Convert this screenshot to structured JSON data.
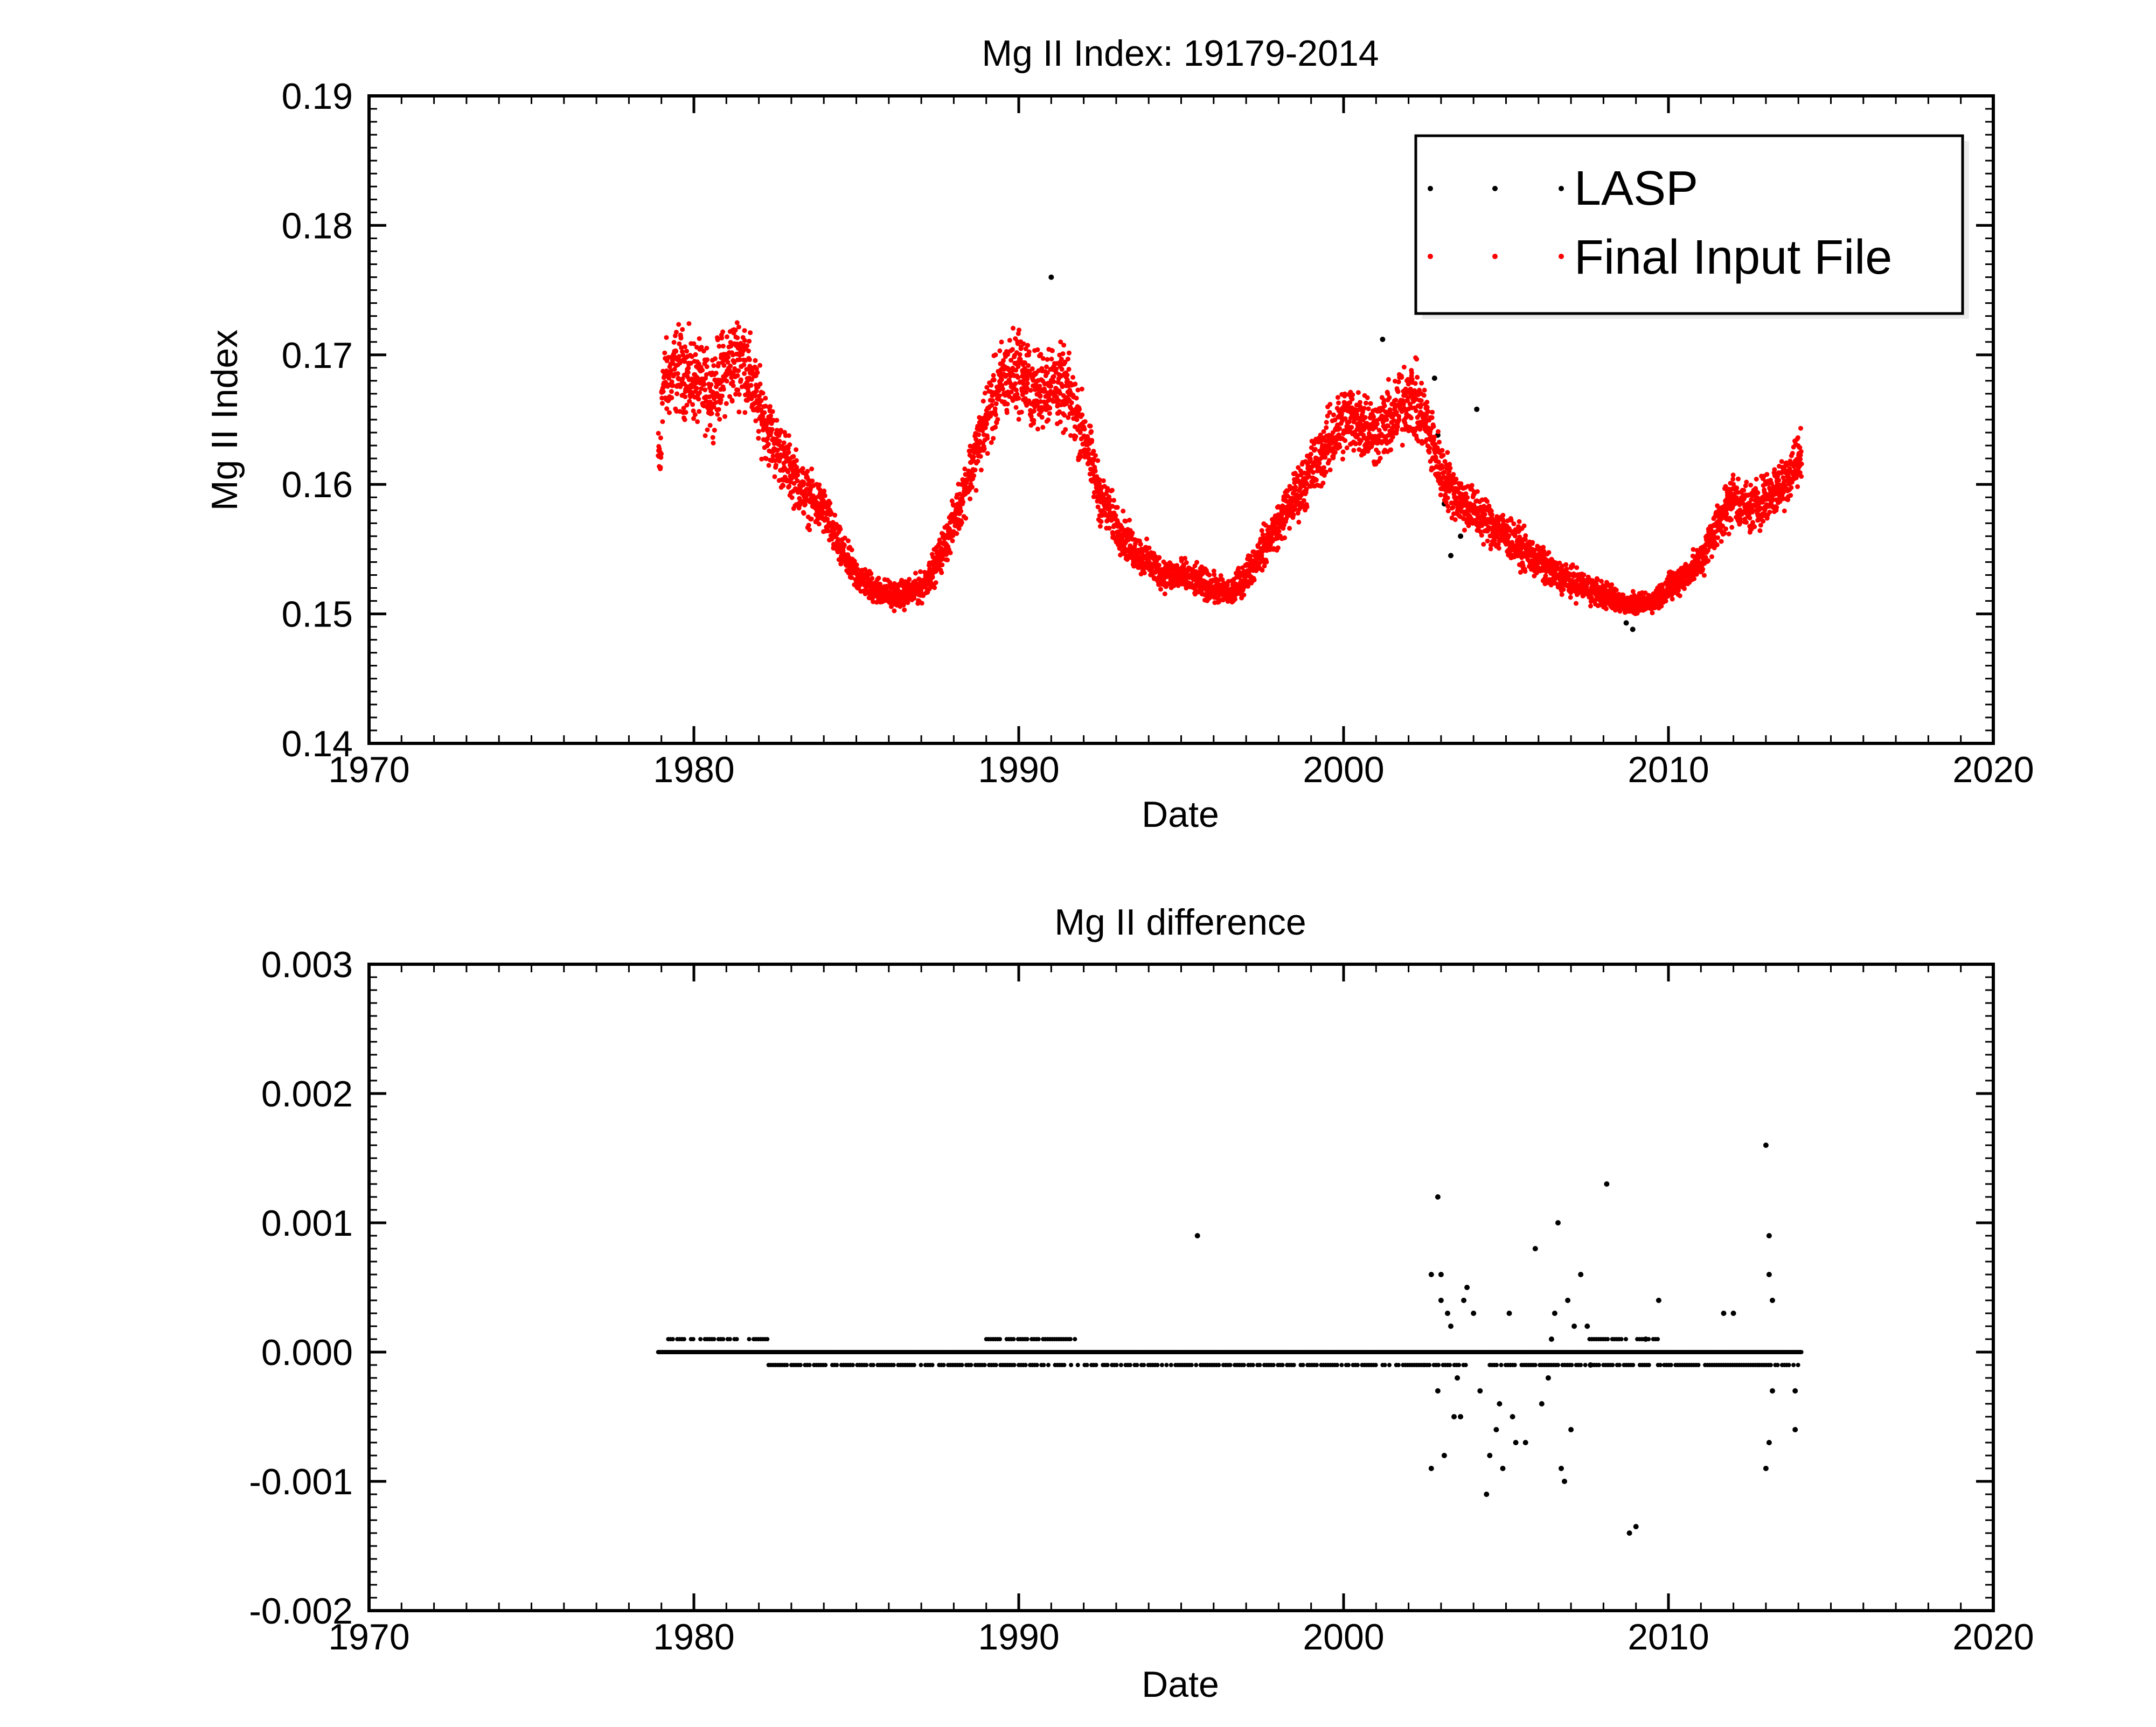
{
  "chart_data": [
    {
      "type": "scatter",
      "title": "Mg II Index: 19179-2014",
      "xlabel": "Date",
      "ylabel": "Mg II Index",
      "xlim": [
        1970,
        2020
      ],
      "ylim": [
        0.14,
        0.19
      ],
      "xticks": [
        1970,
        1980,
        1990,
        2000,
        2010,
        2020
      ],
      "xtick_labels": [
        "1970",
        "1980",
        "1990",
        "2000",
        "2010",
        "2020"
      ],
      "yticks": [
        0.14,
        0.15,
        0.16,
        0.17,
        0.18,
        0.19
      ],
      "ytick_labels": [
        "0.14",
        "0.15",
        "0.16",
        "0.17",
        "0.18",
        "0.19"
      ],
      "legend_position": "top-right",
      "series": [
        {
          "name": "LASP",
          "color": "#000000",
          "points": [
            [
              2002.8,
              0.1682
            ],
            [
              2002.9,
              0.1638
            ],
            [
              2003.1,
              0.1585
            ],
            [
              2003.3,
              0.1545
            ],
            [
              2004.1,
              0.1658
            ],
            [
              2008.7,
              0.1493
            ],
            [
              2008.9,
              0.1488
            ],
            [
              2001.2,
              0.1712
            ],
            [
              1991.0,
              0.176
            ],
            [
              2003.6,
              0.156
            ]
          ]
        },
        {
          "name": "Final Input File",
          "color": "#ff0000",
          "envelope": [
            [
              1979.0,
              0.1675
            ],
            [
              1979.5,
              0.169
            ],
            [
              1980.0,
              0.168
            ],
            [
              1980.5,
              0.167
            ],
            [
              1981.0,
              0.169
            ],
            [
              1981.5,
              0.17
            ],
            [
              1982.0,
              0.166
            ],
            [
              1982.5,
              0.163
            ],
            [
              1983.0,
              0.161
            ],
            [
              1983.5,
              0.159
            ],
            [
              1984.0,
              0.158
            ],
            [
              1984.5,
              0.155
            ],
            [
              1985.0,
              0.153
            ],
            [
              1985.5,
              0.152
            ],
            [
              1986.0,
              0.1515
            ],
            [
              1986.5,
              0.1515
            ],
            [
              1987.0,
              0.152
            ],
            [
              1987.5,
              0.154
            ],
            [
              1988.0,
              0.157
            ],
            [
              1988.5,
              0.161
            ],
            [
              1989.0,
              0.165
            ],
            [
              1989.5,
              0.168
            ],
            [
              1990.0,
              0.169
            ],
            [
              1990.5,
              0.167
            ],
            [
              1991.0,
              0.168
            ],
            [
              1991.5,
              0.167
            ],
            [
              1992.0,
              0.164
            ],
            [
              1992.5,
              0.159
            ],
            [
              1993.0,
              0.157
            ],
            [
              1993.5,
              0.155
            ],
            [
              1994.0,
              0.154
            ],
            [
              1994.5,
              0.153
            ],
            [
              1995.0,
              0.153
            ],
            [
              1995.5,
              0.1525
            ],
            [
              1996.0,
              0.152
            ],
            [
              1996.5,
              0.1515
            ],
            [
              1997.0,
              0.153
            ],
            [
              1997.5,
              0.155
            ],
            [
              1998.0,
              0.157
            ],
            [
              1998.5,
              0.159
            ],
            [
              1999.0,
              0.161
            ],
            [
              1999.5,
              0.163
            ],
            [
              2000.0,
              0.165
            ],
            [
              2000.5,
              0.165
            ],
            [
              2001.0,
              0.164
            ],
            [
              2001.5,
              0.165
            ],
            [
              2002.0,
              0.167
            ],
            [
              2002.5,
              0.165
            ],
            [
              2003.0,
              0.161
            ],
            [
              2003.5,
              0.159
            ],
            [
              2004.0,
              0.158
            ],
            [
              2004.5,
              0.157
            ],
            [
              2005.0,
              0.156
            ],
            [
              2005.5,
              0.155
            ],
            [
              2006.0,
              0.154
            ],
            [
              2006.5,
              0.153
            ],
            [
              2007.0,
              0.1525
            ],
            [
              2007.5,
              0.152
            ],
            [
              2008.0,
              0.1515
            ],
            [
              2008.5,
              0.151
            ],
            [
              2009.0,
              0.1505
            ],
            [
              2009.5,
              0.151
            ],
            [
              2010.0,
              0.152
            ],
            [
              2010.5,
              0.153
            ],
            [
              2011.0,
              0.154
            ],
            [
              2011.5,
              0.157
            ],
            [
              2012.0,
              0.159
            ],
            [
              2012.5,
              0.158
            ],
            [
              2013.0,
              0.159
            ],
            [
              2013.5,
              0.16
            ],
            [
              2014.0,
              0.162
            ]
          ],
          "spread": 0.0035,
          "x_range": [
            1978.9,
            2014.1
          ],
          "y_range": [
            0.15,
            0.1805
          ]
        }
      ]
    },
    {
      "type": "scatter",
      "title": "Mg II difference",
      "xlabel": "Date",
      "ylabel": "",
      "xlim": [
        1970,
        2020
      ],
      "ylim": [
        -0.002,
        0.003
      ],
      "xticks": [
        1970,
        1980,
        1990,
        2000,
        2010,
        2020
      ],
      "xtick_labels": [
        "1970",
        "1980",
        "1990",
        "2000",
        "2010",
        "2020"
      ],
      "yticks": [
        -0.002,
        -0.001,
        0.0,
        0.001,
        0.002,
        0.003
      ],
      "ytick_labels": [
        "-0.002",
        "-0.001",
        "0.000",
        "0.001",
        "0.002",
        "0.003"
      ],
      "series": [
        {
          "name": "",
          "color": "#000000",
          "baseline": {
            "x_range": [
              1978.9,
              2014.1
            ],
            "y": 0.0
          },
          "bands": [
            {
              "x_range": [
                1979.0,
                1980.0
              ],
              "y": 0.0001
            },
            {
              "x_range": [
                1980.2,
                1981.5
              ],
              "y": 0.0001
            },
            {
              "x_range": [
                1981.7,
                1982.3
              ],
              "y": 0.0001
            },
            {
              "x_range": [
                1982.3,
                2002.5
              ],
              "y": -0.0001
            },
            {
              "x_range": [
                1989.0,
                1991.8
              ],
              "y": 0.0001
            },
            {
              "x_range": [
                2002.5,
                2003.8
              ],
              "y": -0.0001
            },
            {
              "x_range": [
                2004.5,
                2009.8
              ],
              "y": -0.0001
            },
            {
              "x_range": [
                2007.5,
                2009.8
              ],
              "y": 0.0001
            },
            {
              "x_range": [
                2009.8,
                2012.8
              ],
              "y": -0.0001
            },
            {
              "x_range": [
                2012.8,
                2014.0
              ],
              "y": -0.0001
            }
          ],
          "points": [
            [
              1995.5,
              0.0009
            ],
            [
              2002.7,
              0.0006
            ],
            [
              2002.9,
              0.0012
            ],
            [
              2003.0,
              0.0006
            ],
            [
              2002.7,
              -0.0009
            ],
            [
              2003.1,
              -0.0008
            ],
            [
              2003.0,
              0.0004
            ],
            [
              2003.2,
              0.0003
            ],
            [
              2003.4,
              -0.0005
            ],
            [
              2003.6,
              -0.0005
            ],
            [
              2003.7,
              0.0004
            ],
            [
              2003.8,
              0.0005
            ],
            [
              2004.0,
              0.0003
            ],
            [
              2004.2,
              -0.0003
            ],
            [
              2004.4,
              -0.0011
            ],
            [
              2004.5,
              -0.0008
            ],
            [
              2004.7,
              -0.0006
            ],
            [
              2004.9,
              -0.0009
            ],
            [
              2005.1,
              0.0003
            ],
            [
              2005.3,
              -0.0007
            ],
            [
              2005.6,
              -0.0007
            ],
            [
              2005.9,
              0.0008
            ],
            [
              2006.1,
              -0.0004
            ],
            [
              2006.4,
              0.0001
            ],
            [
              2006.6,
              0.001
            ],
            [
              2006.7,
              -0.0009
            ],
            [
              2006.8,
              -0.001
            ],
            [
              2006.9,
              0.0004
            ],
            [
              2007.1,
              0.0002
            ],
            [
              2007.3,
              0.0006
            ],
            [
              2007.6,
              -0.0001
            ],
            [
              2008.1,
              0.0013
            ],
            [
              2008.8,
              -0.0014
            ],
            [
              2009.0,
              -0.00135
            ],
            [
              2009.3,
              0.0001
            ],
            [
              2009.7,
              0.0004
            ],
            [
              2011.7,
              0.0003
            ],
            [
              2012.0,
              0.0003
            ],
            [
              2013.0,
              0.0016
            ],
            [
              2013.1,
              0.0009
            ],
            [
              2013.1,
              0.0006
            ],
            [
              2013.2,
              0.0004
            ],
            [
              2013.0,
              -0.0009
            ],
            [
              2013.1,
              -0.0007
            ],
            [
              2013.2,
              -0.0003
            ],
            [
              2013.9,
              -0.0003
            ],
            [
              2013.9,
              -0.0006
            ],
            [
              2003.3,
              0.0002
            ],
            [
              2002.9,
              -0.0003
            ],
            [
              2003.5,
              -0.0002
            ],
            [
              2004.8,
              -0.0004
            ],
            [
              2005.2,
              -0.0005
            ],
            [
              2006.3,
              -0.0002
            ],
            [
              2006.5,
              0.0003
            ],
            [
              2007.0,
              -0.0006
            ],
            [
              2007.5,
              0.0002
            ]
          ]
        }
      ]
    }
  ],
  "legend": {
    "items": [
      {
        "label": "LASP",
        "color": "#000000"
      },
      {
        "label": "Final Input File",
        "color": "#ff0000"
      }
    ]
  }
}
